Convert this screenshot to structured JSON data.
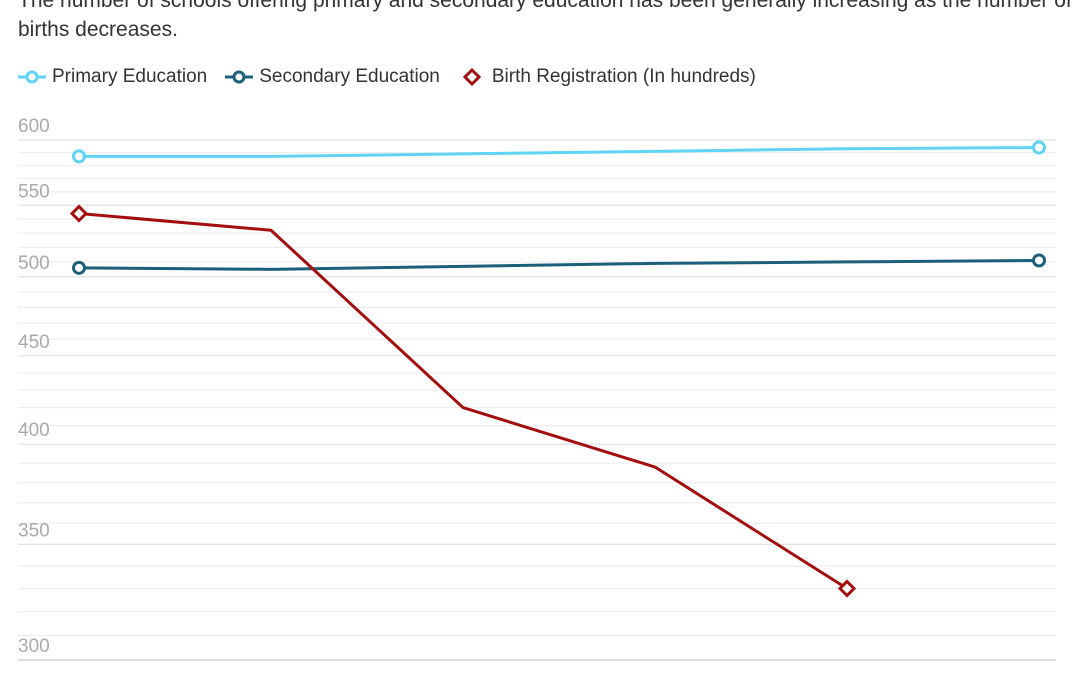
{
  "chart_data": {
    "type": "line",
    "title": "The number of schools offering primary and secondary education has been generally increasing as the number of births decreases.",
    "x": [
      "",
      "",
      "",
      "",
      "",
      ""
    ],
    "y_scale": "log",
    "ylim": [
      300,
      600
    ],
    "y_ticks": [
      300,
      350,
      400,
      450,
      500,
      550,
      600
    ],
    "grid": true,
    "legend_position": "top-left",
    "series": [
      {
        "name": "Primary Education",
        "color": "#5fd4f4",
        "marker": "circle",
        "values": [
          587,
          587,
          589,
          591,
          593,
          594
        ]
      },
      {
        "name": "Secondary Education",
        "color": "#1b5f78",
        "marker": "circle",
        "values": [
          506,
          505,
          507,
          509,
          510,
          511
        ]
      },
      {
        "name": "Birth Registration (In hundreds)",
        "color": "#a30f0f",
        "marker": "diamond",
        "values": [
          544,
          532,
          420,
          388,
          330,
          null
        ]
      }
    ]
  }
}
